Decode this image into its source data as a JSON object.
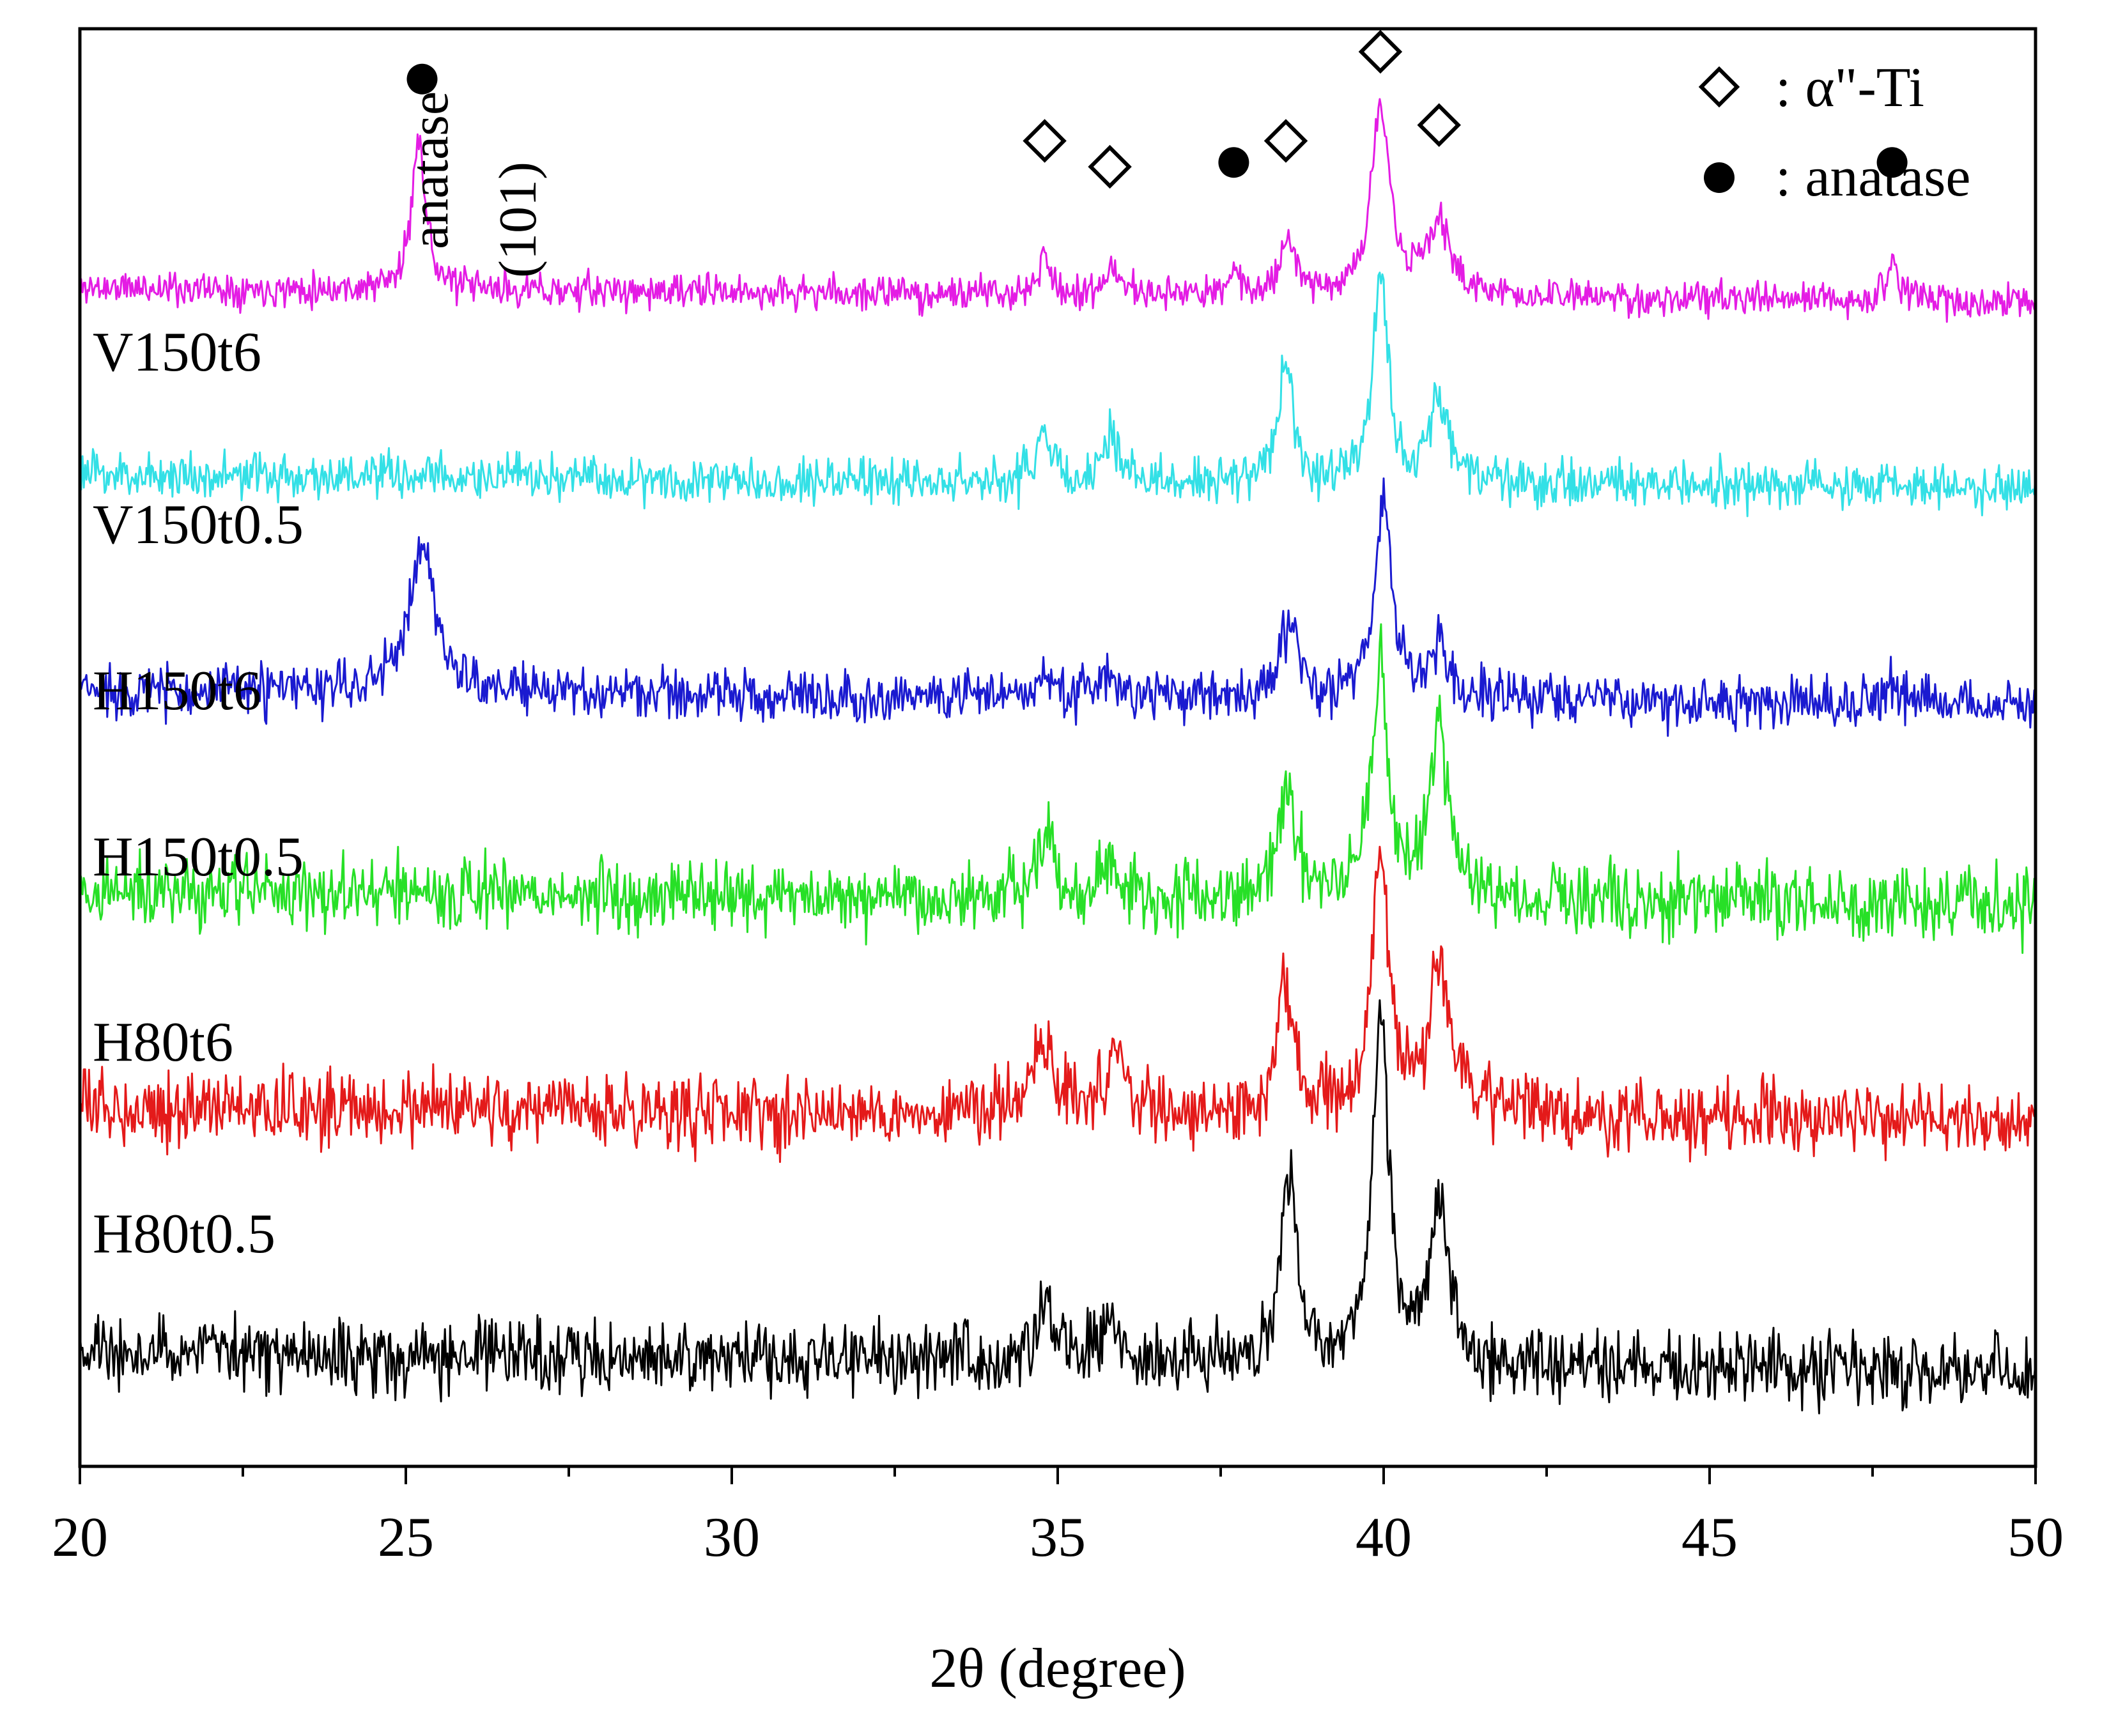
{
  "chart_data": {
    "type": "line",
    "title": "",
    "xlabel": "2θ (degree)",
    "ylabel": "",
    "xlim": [
      20,
      50
    ],
    "ylim": [
      0,
      100
    ],
    "x_ticks": [
      20,
      25,
      30,
      35,
      40,
      45,
      50
    ],
    "x_tick_labels": [
      "20",
      "25",
      "30",
      "35",
      "40",
      "45",
      "50"
    ],
    "y_axis_labels_shown": false,
    "legend": {
      "position": "top-right",
      "entries": [
        {
          "symbol": "◇",
          "symbol_name": "open-diamond",
          "label": ": α\"-Ti"
        },
        {
          "symbol": "●",
          "symbol_name": "filled-circle",
          "label": ": anatase"
        }
      ]
    },
    "series": [
      {
        "name": "V150t6",
        "color": "#e41ce4",
        "baseline": 82,
        "noise": 1.2,
        "slope": -1.0,
        "seed": 11,
        "peaks": [
          {
            "pos": 25.2,
            "height": 11,
            "width": 0.12
          },
          {
            "pos": 34.8,
            "height": 3.5,
            "width": 0.08
          },
          {
            "pos": 35.9,
            "height": 2,
            "width": 0.1
          },
          {
            "pos": 37.7,
            "height": 1.6,
            "width": 0.1
          },
          {
            "pos": 38.55,
            "height": 4,
            "width": 0.15
          },
          {
            "pos": 39.95,
            "height": 13,
            "width": 0.17
          },
          {
            "pos": 40.85,
            "height": 5,
            "width": 0.22
          },
          {
            "pos": 47.8,
            "height": 2.5,
            "width": 0.12
          }
        ]
      },
      {
        "name": "V150t0.5",
        "color": "#33e0e6",
        "baseline": 69,
        "noise": 1.6,
        "slope": -1.0,
        "seed": 23,
        "peaks": [
          {
            "pos": 34.8,
            "height": 3.5,
            "width": 0.12
          },
          {
            "pos": 35.8,
            "height": 3,
            "width": 0.15
          },
          {
            "pos": 38.5,
            "height": 8,
            "width": 0.14
          },
          {
            "pos": 39.95,
            "height": 14,
            "width": 0.14
          },
          {
            "pos": 40.85,
            "height": 6,
            "width": 0.18
          }
        ]
      },
      {
        "name": "H150t6",
        "color": "#1a1ad0",
        "baseline": 54,
        "noise": 1.8,
        "slope": -1.0,
        "seed": 37,
        "peaks": [
          {
            "pos": 25.25,
            "height": 10,
            "width": 0.25
          },
          {
            "pos": 34.8,
            "height": 2,
            "width": 0.15
          },
          {
            "pos": 35.8,
            "height": 1.5,
            "width": 0.15
          },
          {
            "pos": 38.55,
            "height": 5,
            "width": 0.18
          },
          {
            "pos": 40.0,
            "height": 14,
            "width": 0.15
          },
          {
            "pos": 40.85,
            "height": 4,
            "width": 0.15
          },
          {
            "pos": 47.8,
            "height": 1.5,
            "width": 0.15
          }
        ]
      },
      {
        "name": "H150t0.5",
        "color": "#27e027",
        "baseline": 40,
        "noise": 2.5,
        "slope": -1.0,
        "seed": 41,
        "peaks": [
          {
            "pos": 34.8,
            "height": 5,
            "width": 0.15
          },
          {
            "pos": 35.8,
            "height": 2.5,
            "width": 0.15
          },
          {
            "pos": 38.5,
            "height": 8,
            "width": 0.16
          },
          {
            "pos": 39.95,
            "height": 16,
            "width": 0.15
          },
          {
            "pos": 40.85,
            "height": 11,
            "width": 0.2
          }
        ]
      },
      {
        "name": "H80t6",
        "color": "#e41a1a",
        "baseline": 25,
        "noise": 2.5,
        "slope": -1.0,
        "seed": 53,
        "peaks": [
          {
            "pos": 34.8,
            "height": 5,
            "width": 0.2
          },
          {
            "pos": 35.9,
            "height": 4,
            "width": 0.18
          },
          {
            "pos": 38.5,
            "height": 9,
            "width": 0.15
          },
          {
            "pos": 39.95,
            "height": 18,
            "width": 0.15
          },
          {
            "pos": 40.85,
            "height": 10,
            "width": 0.2
          }
        ]
      },
      {
        "name": "H80t0.5",
        "color": "#000000",
        "baseline": 8,
        "noise": 2.5,
        "slope": -1.5,
        "seed": 67,
        "peaks": [
          {
            "pos": 34.8,
            "height": 5,
            "width": 0.12
          },
          {
            "pos": 35.8,
            "height": 3,
            "width": 0.15
          },
          {
            "pos": 38.55,
            "height": 13,
            "width": 0.15
          },
          {
            "pos": 39.95,
            "height": 24,
            "width": 0.15
          },
          {
            "pos": 40.85,
            "height": 10,
            "width": 0.2
          }
        ]
      }
    ],
    "annotations": {
      "peak_label_line1": "anatase",
      "peak_label_line2": "(101)",
      "markers": [
        {
          "symbol": "filled-circle",
          "x": 25.25,
          "y": 96.5
        },
        {
          "symbol": "open-diamond",
          "x": 34.8,
          "y": 92.2
        },
        {
          "symbol": "open-diamond",
          "x": 35.8,
          "y": 90.4
        },
        {
          "symbol": "filled-circle",
          "x": 37.7,
          "y": 90.7
        },
        {
          "symbol": "open-diamond",
          "x": 38.5,
          "y": 92.2
        },
        {
          "symbol": "open-diamond",
          "x": 39.95,
          "y": 98.4
        },
        {
          "symbol": "open-diamond",
          "x": 40.85,
          "y": 93.3
        },
        {
          "symbol": "filled-circle",
          "x": 47.8,
          "y": 90.7
        }
      ]
    }
  }
}
